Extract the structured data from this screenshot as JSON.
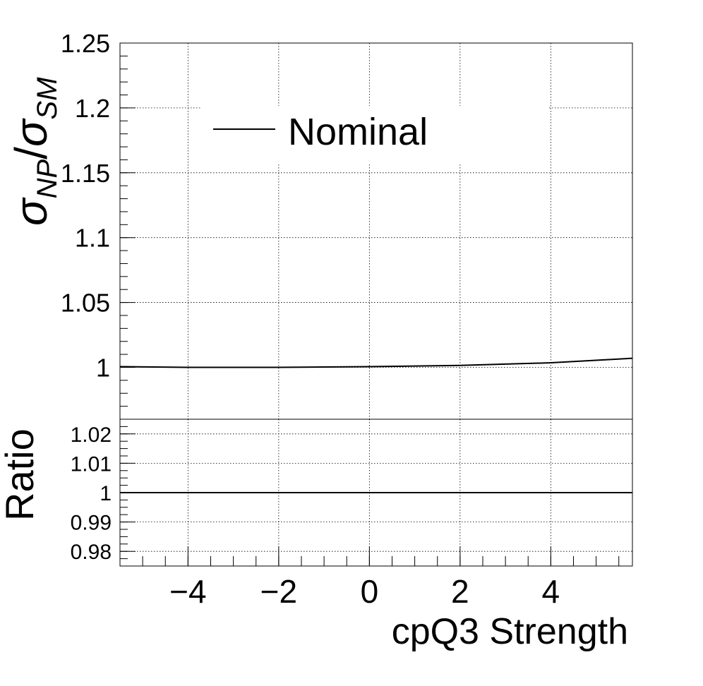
{
  "chart_data": [
    {
      "panel": "main",
      "type": "line",
      "ylabel": {
        "base": "σ",
        "sub1": "NP",
        "slash": "/",
        "base2": "σ",
        "sub2": "SM"
      },
      "xlim": [
        -5.5,
        5.8
      ],
      "ylim": [
        0.96,
        1.25
      ],
      "y_ticks": [
        1,
        1.05,
        1.1,
        1.15,
        1.2,
        1.25
      ],
      "y_tick_labels": [
        "1",
        "1.05",
        "1.1",
        "1.15",
        "1.2",
        "1.25"
      ],
      "grid": true,
      "legend": {
        "position": "top-left",
        "entries": [
          {
            "label": "Nominal"
          }
        ]
      },
      "series": [
        {
          "name": "Nominal",
          "color": "#000000",
          "x": [
            -5.5,
            -4,
            -2,
            0,
            2,
            4,
            5.8
          ],
          "y": [
            1.0005,
            1.0,
            1.0,
            1.0005,
            1.0015,
            1.0035,
            1.007
          ]
        }
      ]
    },
    {
      "panel": "ratio",
      "type": "line",
      "ylabel": "Ratio",
      "xlabel": "cpQ3 Strength",
      "xlim": [
        -5.5,
        5.8
      ],
      "ylim": [
        0.975,
        1.025
      ],
      "x_ticks": [
        -4,
        -2,
        0,
        2,
        4
      ],
      "x_tick_labels": [
        "−4",
        "−2",
        "0",
        "2",
        "4"
      ],
      "y_ticks": [
        0.98,
        0.99,
        1,
        1.01,
        1.02
      ],
      "y_tick_labels": [
        "0.98",
        "0.99",
        "1",
        "1.01",
        "1.02"
      ],
      "grid": true,
      "series": [
        {
          "color": "#000000",
          "x": [
            -5.5,
            5.8
          ],
          "y": [
            1,
            1
          ]
        }
      ]
    }
  ]
}
